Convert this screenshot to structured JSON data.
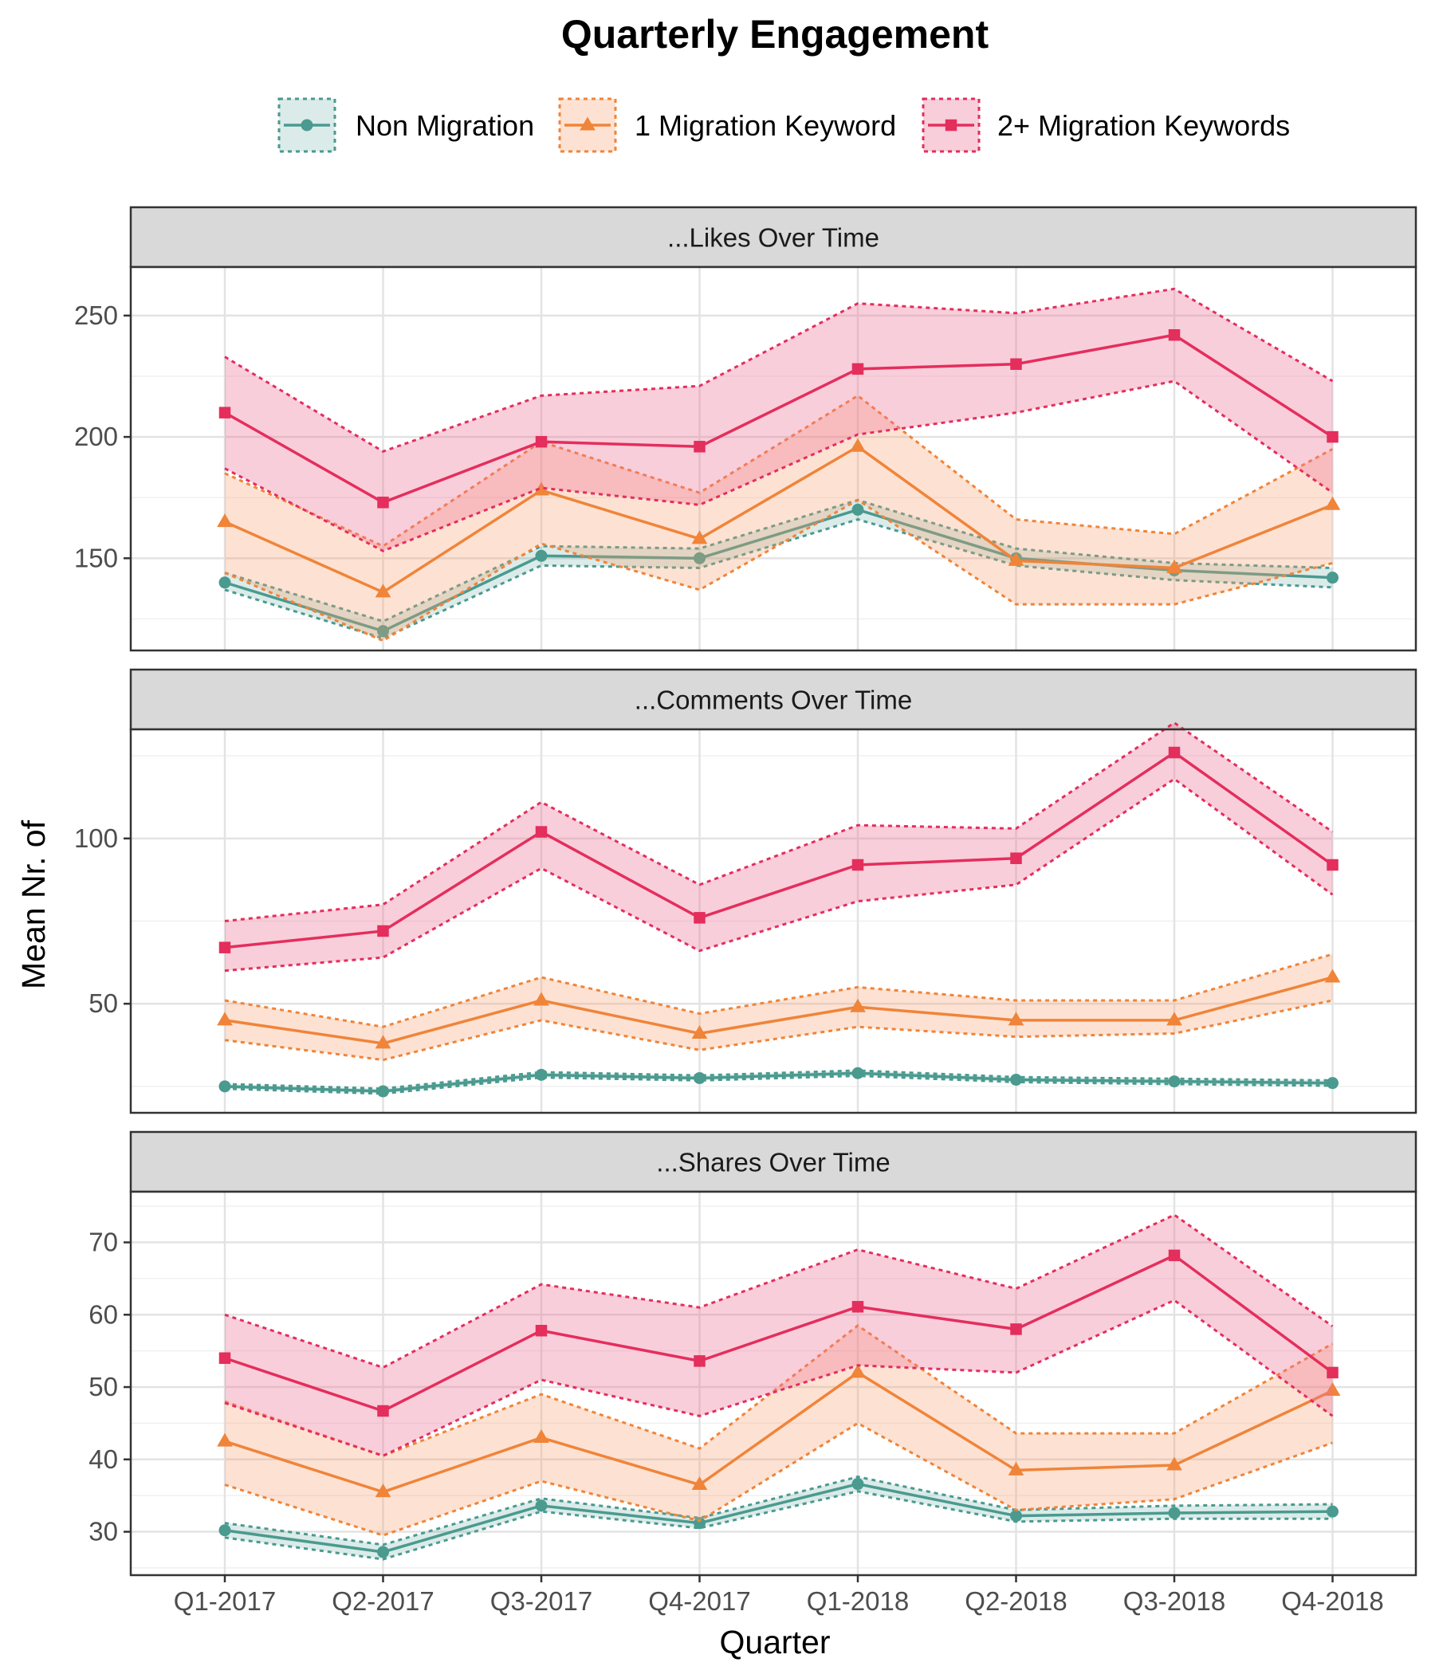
{
  "chart_data": {
    "type": "line",
    "title": "Quarterly Engagement",
    "xlabel": "Quarter",
    "ylabel": "Mean Nr. of",
    "categories": [
      "Q1-2017",
      "Q2-2017",
      "Q3-2017",
      "Q4-2017",
      "Q1-2018",
      "Q2-2018",
      "Q3-2018",
      "Q4-2018"
    ],
    "legend": {
      "position": "top",
      "entries": [
        {
          "name": "Non Migration",
          "color": "#4a9a8f",
          "marker": "circle"
        },
        {
          "name": "1 Migration Keyword",
          "color": "#f08439",
          "marker": "triangle"
        },
        {
          "name": "2+ Migration Keywords",
          "color": "#e42e5c",
          "marker": "square"
        }
      ]
    },
    "grid": true,
    "panels": [
      {
        "strip": "...Likes Over Time",
        "ylim": [
          112,
          270
        ],
        "yticks": [
          150,
          200,
          250
        ],
        "series": [
          {
            "name": "Non Migration",
            "values": [
              140,
              120,
              151,
              150,
              170,
              150,
              145,
              142
            ],
            "lower": [
              137,
              117,
              147,
              146,
              166,
              147,
              141,
              138
            ],
            "upper": [
              144,
              124,
              155,
              154,
              174,
              154,
              148,
              146
            ]
          },
          {
            "name": "1 Migration Keyword",
            "values": [
              165,
              136,
              178,
              158,
              196,
              149,
              146,
              172
            ],
            "lower": [
              144,
              116,
              156,
              137,
              174,
              131,
              131,
              148
            ],
            "upper": [
              185,
              155,
              198,
              177,
              217,
              166,
              160,
              195
            ]
          },
          {
            "name": "2+ Migration Keywords",
            "values": [
              210,
              173,
              198,
              196,
              228,
              230,
              242,
              200
            ],
            "lower": [
              187,
              153,
              179,
              172,
              201,
              210,
              223,
              177
            ],
            "upper": [
              233,
              194,
              217,
              221,
              255,
              251,
              261,
              223
            ]
          }
        ]
      },
      {
        "strip": "...Comments Over Time",
        "ylim": [
          17,
          133
        ],
        "yticks": [
          50,
          100
        ],
        "series": [
          {
            "name": "Non Migration",
            "values": [
              25,
              23.5,
              28.5,
              27.5,
              29,
              27,
              26.5,
              26
            ],
            "lower": [
              24.3,
              22.8,
              27.7,
              26.8,
              28.2,
              26.3,
              25.7,
              25.2
            ],
            "upper": [
              25.7,
              24.3,
              29.3,
              28.3,
              29.8,
              27.8,
              27.3,
              26.8
            ]
          },
          {
            "name": "1 Migration Keyword",
            "values": [
              45,
              38,
              51,
              41,
              49,
              45,
              45,
              58
            ],
            "lower": [
              39,
              33,
              45,
              36,
              43,
              40,
              41,
              51
            ],
            "upper": [
              51,
              43,
              58,
              47,
              55,
              51,
              51,
              65
            ]
          },
          {
            "name": "2+ Migration Keywords",
            "values": [
              67,
              72,
              102,
              76,
              92,
              94,
              126,
              92
            ],
            "lower": [
              60,
              64,
              91,
              66,
              81,
              86,
              118,
              83
            ],
            "upper": [
              75,
              80,
              111,
              86,
              104,
              103,
              135,
              102
            ]
          }
        ]
      },
      {
        "strip": "...Shares Over Time",
        "ylim": [
          24,
          77
        ],
        "yticks": [
          30,
          40,
          50,
          60,
          70
        ],
        "series": [
          {
            "name": "Non Migration",
            "values": [
              30.2,
              27.2,
              33.6,
              31.2,
              36.6,
              32.2,
              32.6,
              32.8
            ],
            "lower": [
              29.2,
              26.2,
              32.8,
              30.5,
              35.6,
              31.4,
              31.8,
              31.8
            ],
            "upper": [
              31.2,
              28.2,
              34.6,
              31.9,
              37.6,
              33.0,
              33.6,
              33.8
            ]
          },
          {
            "name": "1 Migration Keyword",
            "values": [
              42.5,
              35.5,
              43,
              36.5,
              52,
              38.5,
              39.2,
              49.5
            ],
            "lower": [
              36.5,
              29.5,
              37,
              31.5,
              45,
              33,
              34.5,
              42.3
            ],
            "upper": [
              48,
              40.5,
              49,
              41.5,
              58.5,
              43.6,
              43.6,
              56
            ]
          },
          {
            "name": "2+ Migration Keywords",
            "values": [
              54,
              46.7,
              57.8,
              53.6,
              61.1,
              58,
              68.2,
              52
            ],
            "lower": [
              47.8,
              40.5,
              51,
              46,
              53,
              52,
              62,
              46
            ],
            "upper": [
              60,
              52.7,
              64.2,
              61,
              69,
              63.6,
              73.8,
              58.4
            ]
          }
        ]
      }
    ]
  }
}
